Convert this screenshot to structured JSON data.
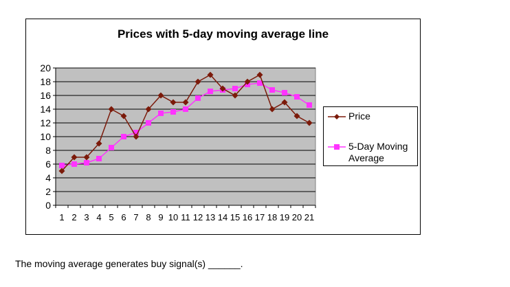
{
  "chart_data": {
    "type": "line",
    "title": "Prices with 5-day moving average line",
    "xlabel": "",
    "ylabel": "",
    "categories": [
      "1",
      "2",
      "3",
      "4",
      "5",
      "6",
      "7",
      "8",
      "9",
      "10",
      "11",
      "12",
      "13",
      "14",
      "15",
      "16",
      "17",
      "18",
      "19",
      "20",
      "21"
    ],
    "y_ticks": [
      "0",
      "2",
      "4",
      "6",
      "8",
      "10",
      "12",
      "14",
      "16",
      "18",
      "20"
    ],
    "ylim": [
      0,
      20
    ],
    "grid": true,
    "legend_position": "right",
    "series": [
      {
        "name": "Price",
        "color": "#7b1a0a",
        "marker": "diamond",
        "values": [
          5,
          7,
          7,
          9,
          14,
          13,
          10,
          14,
          16,
          15,
          15,
          18,
          19,
          17,
          16,
          18,
          19,
          14,
          15,
          13,
          12
        ]
      },
      {
        "name": "5-Day Moving Average",
        "color": "#ff33ff",
        "marker": "square",
        "values": [
          5.8,
          6,
          6.2,
          6.8,
          8.4,
          10,
          10.6,
          12,
          13.4,
          13.6,
          14,
          15.6,
          16.6,
          16.8,
          17,
          17.6,
          17.8,
          16.8,
          16.4,
          15.8,
          14.6
        ]
      }
    ],
    "plot_background": "#c0c0c0"
  },
  "legend": {
    "price": "Price",
    "ma": "5-Day Moving Average"
  },
  "question": "The moving average generates buy signal(s) ______."
}
